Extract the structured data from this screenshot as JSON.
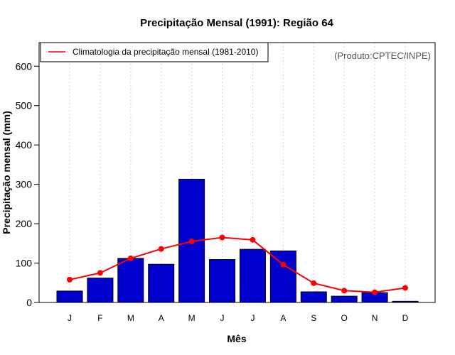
{
  "chart_data": {
    "type": "bar",
    "title": "Precipitação Mensal (1991): Região 64",
    "xlabel": "Mês",
    "ylabel": "Precipitação mensal (mm)",
    "categories": [
      "J",
      "F",
      "M",
      "A",
      "M",
      "J",
      "J",
      "A",
      "S",
      "O",
      "N",
      "D"
    ],
    "ylim": [
      0,
      660
    ],
    "yticks": [
      0,
      100,
      200,
      300,
      400,
      500,
      600
    ],
    "series": [
      {
        "name": "Precipitação mensal (1991)",
        "type": "bar",
        "color": "#0000cd",
        "values": [
          29,
          62,
          112,
          97,
          313,
          109,
          135,
          131,
          27,
          16,
          25,
          3
        ]
      },
      {
        "name": "Climatologia da precipitação mensal (1981-2010)",
        "type": "line",
        "color": "#ff0000",
        "values": [
          58,
          75,
          112,
          136,
          155,
          165,
          159,
          96,
          49,
          30,
          26,
          37
        ]
      }
    ],
    "legend": {
      "position": "top-left",
      "entries": [
        "Climatologia da precipitação mensal (1981-2010)"
      ]
    },
    "annotation": "(Produto:CPTEC/INPE)",
    "grid": "vertical dotted"
  }
}
